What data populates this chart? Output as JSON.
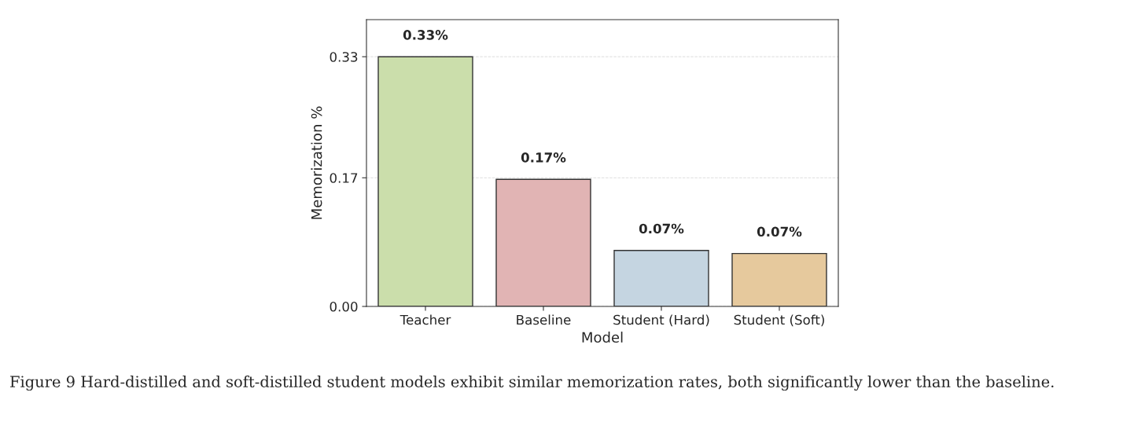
{
  "chart_data": {
    "type": "bar",
    "xlabel": "Model",
    "ylabel": "Memorization %",
    "categories": [
      "Teacher",
      "Baseline",
      "Student (Hard)",
      "Student (Soft)"
    ],
    "values": [
      0.33,
      0.168,
      0.074,
      0.07
    ],
    "colors": [
      "#cde6a3",
      "#e8adad",
      "#c0d6e6",
      "#f2cb91"
    ],
    "value_labels": [
      "0.33%",
      "0.17%",
      "0.07%",
      "0.07%"
    ],
    "ylim": [
      0,
      0.379
    ],
    "yticks": [
      {
        "value": 0,
        "label": "0.00"
      },
      0.17,
      0.33
    ],
    "grid": "y",
    "annotations": [
      "Figure 9 Hard-distilled and soft-distilled student models exhibit similar memorization rates, both significantly lower than the baseline."
    ]
  }
}
